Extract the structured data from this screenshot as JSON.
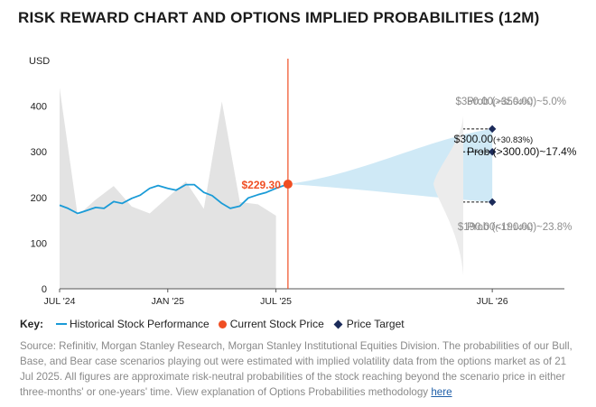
{
  "title": "RISK REWARD CHART AND OPTIONS IMPLIED PROBABILITIES (12M)",
  "chart_data": {
    "type": "line",
    "ylabel": "USD",
    "ylim": [
      0,
      500
    ],
    "yticks": [
      "0",
      "100",
      "200",
      "300",
      "400"
    ],
    "ytick_values": [
      0,
      100,
      200,
      300,
      400
    ],
    "xlim": [
      "2024-07",
      "2026-11"
    ],
    "xtick_labels": [
      "JUL '24",
      "JAN '25",
      "JUL '25",
      "JUL '26"
    ],
    "xtick_values": [
      "2024-07",
      "2025-01",
      "2025-07",
      "2026-07"
    ],
    "series": [
      {
        "name": "Historical Stock Performance",
        "color": "#1a9bd7",
        "x": [
          "2024-07",
          "2024-07-15",
          "2024-08",
          "2024-08-15",
          "2024-09",
          "2024-09-15",
          "2024-10",
          "2024-10-15",
          "2024-11",
          "2024-11-15",
          "2024-12",
          "2024-12-15",
          "2025-01",
          "2025-01-15",
          "2025-02",
          "2025-02-15",
          "2025-03",
          "2025-03-15",
          "2025-04",
          "2025-04-15",
          "2025-05",
          "2025-05-15",
          "2025-06",
          "2025-06-15",
          "2025-07",
          "2025-07-21"
        ],
        "y": [
          183,
          176,
          165,
          171,
          178,
          176,
          191,
          187,
          198,
          205,
          220,
          226,
          220,
          216,
          228,
          228,
          211,
          204,
          187,
          176,
          181,
          199,
          206,
          211,
          220,
          229.3
        ]
      },
      {
        "name": "Volume",
        "color": "#e3e3e3",
        "x": [
          "2024-07",
          "2024-08",
          "2024-09",
          "2024-10",
          "2024-11",
          "2024-12",
          "2025-01",
          "2025-02",
          "2025-03",
          "2025-04",
          "2025-05",
          "2025-06",
          "2025-07"
        ],
        "y": [
          440,
          160,
          195,
          225,
          180,
          165,
          200,
          235,
          175,
          410,
          190,
          185,
          160
        ]
      }
    ],
    "current_price": {
      "label": "$229.30",
      "value": 229.3,
      "date": "2025-07-21"
    },
    "scenarios": [
      {
        "price_label": "$350.00",
        "pct_label": "(+52.64%)",
        "value": 350,
        "prob_label": "Prob (>350.00)~5.0%",
        "emphasis": false
      },
      {
        "price_label": "$300.00",
        "pct_label": "(+30.83%)",
        "value": 300,
        "prob_label": "Prob (>300.00)~17.4%",
        "emphasis": true
      },
      {
        "price_label": "$190.00",
        "pct_label": "(-17.14%)",
        "value": 190,
        "prob_label": "Prob (<190.00)~23.8%",
        "emphasis": false
      }
    ],
    "colors": {
      "history": "#1a9bd7",
      "current": "#f04e23",
      "cone": "#cfe9f6",
      "target": "#1c2b5a",
      "volume": "#e3e3e3"
    },
    "grid": false
  },
  "key": {
    "label": "Key:",
    "items": [
      "Historical Stock Performance",
      "Current Stock Price",
      "Price Target"
    ]
  },
  "source": {
    "text": "Source: Refinitiv, Morgan Stanley Research, Morgan Stanley Institutional Equities Division. The probabilities of our Bull, Base, and Bear case scenarios playing out were estimated with implied volatility data from the options market as of 21 Jul 2025. All figures are approximate risk-neutral probabilities of the stock reaching beyond the scenario price in either three-months' or one-years' time. View explanation of Options Probabilities methodology ",
    "link": "here"
  }
}
